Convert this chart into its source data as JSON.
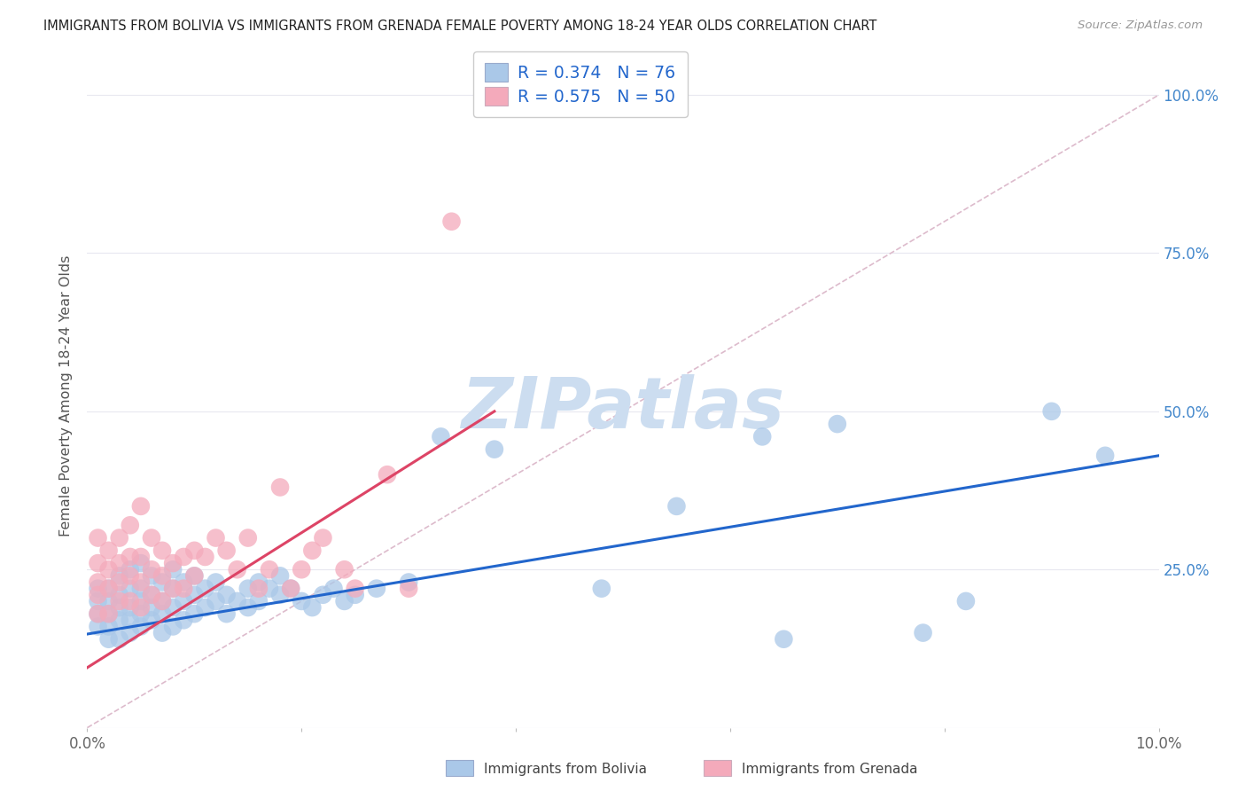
{
  "title": "IMMIGRANTS FROM BOLIVIA VS IMMIGRANTS FROM GRENADA FEMALE POVERTY AMONG 18-24 YEAR OLDS CORRELATION CHART",
  "source": "Source: ZipAtlas.com",
  "ylabel": "Female Poverty Among 18-24 Year Olds",
  "xlim": [
    0.0,
    0.1
  ],
  "ylim": [
    0.0,
    1.05
  ],
  "xtick_vals": [
    0.0,
    0.02,
    0.04,
    0.06,
    0.08,
    0.1
  ],
  "xtick_labels": [
    "0.0%",
    "",
    "",
    "",
    "",
    "10.0%"
  ],
  "ytick_vals": [
    0.0,
    0.25,
    0.5,
    0.75,
    1.0
  ],
  "ytick_labels_right": [
    "",
    "25.0%",
    "50.0%",
    "75.0%",
    "100.0%"
  ],
  "bolivia_color": "#aac8e8",
  "grenada_color": "#f4aabb",
  "bolivia_line_color": "#2266cc",
  "grenada_line_color": "#dd4466",
  "diag_line_color": "#ddbbcc",
  "bolivia_R": 0.374,
  "bolivia_N": 76,
  "grenada_R": 0.575,
  "grenada_N": 50,
  "watermark": "ZIPatlas",
  "watermark_color": "#ccddf0",
  "background_color": "#ffffff",
  "grid_color": "#e8e8f0",
  "bolivia_line_x0": 0.0,
  "bolivia_line_y0": 0.148,
  "bolivia_line_x1": 0.1,
  "bolivia_line_y1": 0.43,
  "grenada_line_x0": 0.0,
  "grenada_line_y0": 0.095,
  "grenada_line_x1": 0.038,
  "grenada_line_y1": 0.5,
  "bolivia_scatter_x": [
    0.001,
    0.001,
    0.001,
    0.001,
    0.002,
    0.002,
    0.002,
    0.002,
    0.002,
    0.003,
    0.003,
    0.003,
    0.003,
    0.003,
    0.004,
    0.004,
    0.004,
    0.004,
    0.004,
    0.005,
    0.005,
    0.005,
    0.005,
    0.005,
    0.006,
    0.006,
    0.006,
    0.006,
    0.007,
    0.007,
    0.007,
    0.007,
    0.008,
    0.008,
    0.008,
    0.008,
    0.009,
    0.009,
    0.009,
    0.01,
    0.01,
    0.01,
    0.011,
    0.011,
    0.012,
    0.012,
    0.013,
    0.013,
    0.014,
    0.015,
    0.015,
    0.016,
    0.016,
    0.017,
    0.018,
    0.018,
    0.019,
    0.02,
    0.021,
    0.022,
    0.023,
    0.024,
    0.025,
    0.027,
    0.03,
    0.033,
    0.038,
    0.048,
    0.055,
    0.063,
    0.065,
    0.07,
    0.078,
    0.082,
    0.09,
    0.095
  ],
  "bolivia_scatter_y": [
    0.16,
    0.18,
    0.2,
    0.22,
    0.14,
    0.16,
    0.18,
    0.2,
    0.22,
    0.14,
    0.17,
    0.19,
    0.21,
    0.24,
    0.15,
    0.17,
    0.19,
    0.22,
    0.25,
    0.16,
    0.18,
    0.2,
    0.22,
    0.26,
    0.17,
    0.19,
    0.21,
    0.24,
    0.15,
    0.18,
    0.2,
    0.23,
    0.16,
    0.19,
    0.22,
    0.25,
    0.17,
    0.2,
    0.23,
    0.18,
    0.21,
    0.24,
    0.19,
    0.22,
    0.2,
    0.23,
    0.18,
    0.21,
    0.2,
    0.19,
    0.22,
    0.2,
    0.23,
    0.22,
    0.21,
    0.24,
    0.22,
    0.2,
    0.19,
    0.21,
    0.22,
    0.2,
    0.21,
    0.22,
    0.23,
    0.46,
    0.44,
    0.22,
    0.35,
    0.46,
    0.14,
    0.48,
    0.15,
    0.2,
    0.5,
    0.43
  ],
  "grenada_scatter_x": [
    0.001,
    0.001,
    0.001,
    0.001,
    0.001,
    0.002,
    0.002,
    0.002,
    0.002,
    0.003,
    0.003,
    0.003,
    0.003,
    0.004,
    0.004,
    0.004,
    0.004,
    0.005,
    0.005,
    0.005,
    0.005,
    0.006,
    0.006,
    0.006,
    0.007,
    0.007,
    0.007,
    0.008,
    0.008,
    0.009,
    0.009,
    0.01,
    0.01,
    0.011,
    0.012,
    0.013,
    0.014,
    0.015,
    0.016,
    0.017,
    0.018,
    0.019,
    0.02,
    0.021,
    0.022,
    0.024,
    0.025,
    0.028,
    0.03,
    0.034
  ],
  "grenada_scatter_y": [
    0.18,
    0.21,
    0.23,
    0.26,
    0.3,
    0.18,
    0.22,
    0.25,
    0.28,
    0.2,
    0.23,
    0.26,
    0.3,
    0.2,
    0.24,
    0.27,
    0.32,
    0.19,
    0.23,
    0.27,
    0.35,
    0.21,
    0.25,
    0.3,
    0.2,
    0.24,
    0.28,
    0.22,
    0.26,
    0.22,
    0.27,
    0.24,
    0.28,
    0.27,
    0.3,
    0.28,
    0.25,
    0.3,
    0.22,
    0.25,
    0.38,
    0.22,
    0.25,
    0.28,
    0.3,
    0.25,
    0.22,
    0.4,
    0.22,
    0.8
  ]
}
